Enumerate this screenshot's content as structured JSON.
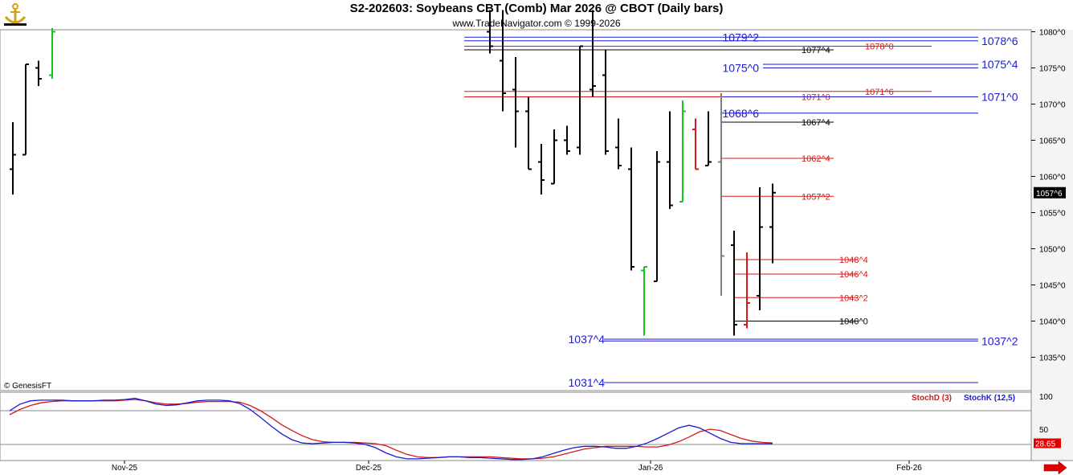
{
  "header": {
    "title": "S2-202603:  Soybeans CBT (Comb) Mar 2026 @ CBOT  (Daily bars)",
    "subtitle": "www.TradeNavigator.com © 1999-2026",
    "logo_icon": "anchor-icon"
  },
  "copyright": "© GenesisFT",
  "price_axis": {
    "ticks": [
      "1080^0",
      "1075^0",
      "1070^0",
      "1065^0",
      "1060^0",
      "1055^0",
      "1050^0",
      "1045^0",
      "1040^0",
      "1035^0"
    ],
    "last_price": "1057^6"
  },
  "date_axis": [
    "Nov-25",
    "Dec-25",
    "Jan-26",
    "Feb-26"
  ],
  "colors": {
    "blue": "#1a1ad6",
    "red": "#d41a1a",
    "black": "#000000",
    "green": "#19c419",
    "gray": "#808080"
  },
  "chart_data": [
    {
      "type": "bar",
      "subtype": "ohlc",
      "ylim": [
        1031,
        1082
      ],
      "bars": [
        {
          "o": 1061,
          "h": 1067.5,
          "l": 1057.5,
          "c": 1063,
          "color": "black"
        },
        {
          "o": 1063,
          "h": 1075.5,
          "l": 1063,
          "c": 1075.5,
          "color": "black"
        },
        {
          "o": 1075,
          "h": 1076,
          "l": 1072.5,
          "c": 1073.5,
          "color": "black"
        },
        {
          "o": 1074,
          "h": 1080.5,
          "l": 1073.5,
          "c": 1080,
          "color": "green"
        },
        {
          "o": 1080,
          "h": 1083,
          "l": 1077,
          "c": 1078,
          "color": "black"
        },
        {
          "o": 1076,
          "h": 1083,
          "l": 1069,
          "c": 1071.5,
          "color": "black"
        },
        {
          "o": 1072,
          "h": 1076.5,
          "l": 1064,
          "c": 1069,
          "color": "black"
        },
        {
          "o": 1069,
          "h": 1071,
          "l": 1061,
          "c": 1061,
          "color": "black"
        },
        {
          "o": 1062,
          "h": 1064.5,
          "l": 1057.5,
          "c": 1059.5,
          "color": "black"
        },
        {
          "o": 1059,
          "h": 1066.5,
          "l": 1059,
          "c": 1065,
          "color": "black"
        },
        {
          "o": 1065,
          "h": 1067,
          "l": 1063,
          "c": 1063.5,
          "color": "black"
        },
        {
          "o": 1064,
          "h": 1078,
          "l": 1063,
          "c": 1078,
          "color": "black"
        },
        {
          "o": 1072,
          "h": 1083,
          "l": 1071,
          "c": 1072.5,
          "color": "black"
        },
        {
          "o": 1074,
          "h": 1077.5,
          "l": 1063,
          "c": 1063.5,
          "color": "black"
        },
        {
          "o": 1064,
          "h": 1068,
          "l": 1061,
          "c": 1061.5,
          "color": "black"
        },
        {
          "o": 1061,
          "h": 1064,
          "l": 1047,
          "c": 1047.5,
          "color": "black"
        },
        {
          "o": 1047,
          "h": 1047.5,
          "l": 1038,
          "c": 1047.5,
          "color": "green"
        },
        {
          "o": 1045.5,
          "h": 1063.5,
          "l": 1045.5,
          "c": 1062,
          "color": "black"
        },
        {
          "o": 1062,
          "h": 1069,
          "l": 1055.5,
          "c": 1056,
          "color": "black"
        },
        {
          "o": 1056.5,
          "h": 1070.5,
          "l": 1056.5,
          "c": 1069,
          "color": "green"
        },
        {
          "o": 1066.5,
          "h": 1068,
          "l": 1061,
          "c": 1061,
          "color": "red"
        },
        {
          "o": 1061.5,
          "h": 1069,
          "l": 1061.5,
          "c": 1062,
          "color": "black"
        },
        {
          "o": 1062,
          "h": 1071.5,
          "l": 1043.5,
          "c": 1049,
          "color": "gray"
        },
        {
          "o": 1050.5,
          "h": 1052.5,
          "l": 1038,
          "c": 1039.5,
          "color": "black"
        },
        {
          "o": 1039.5,
          "h": 1049.5,
          "l": 1039,
          "c": 1042.5,
          "color": "red"
        },
        {
          "o": 1043.5,
          "h": 1058.5,
          "l": 1041.5,
          "c": 1053,
          "color": "black"
        },
        {
          "o": 1053,
          "h": 1059,
          "l": 1048,
          "c": 1057.75,
          "color": "black"
        }
      ],
      "levels": [
        {
          "label": "1079^2",
          "price": 1079.25,
          "color": "blue",
          "side": "left"
        },
        {
          "label": "1078^6",
          "price": 1078.75,
          "color": "blue",
          "side": "right"
        },
        {
          "label": "1077^4",
          "price": 1077.5,
          "color": "black",
          "side": "mid"
        },
        {
          "label": "1078^0",
          "price": 1078,
          "color": "red",
          "side": "mid2"
        },
        {
          "label": "1075^0",
          "price": 1075,
          "color": "blue",
          "side": "left"
        },
        {
          "label": "1075^4",
          "price": 1075.5,
          "color": "blue",
          "side": "right"
        },
        {
          "label": "1071^0",
          "price": 1071,
          "color": "red",
          "side": "mid"
        },
        {
          "label": "1071^6",
          "price": 1071.75,
          "color": "red",
          "side": "mid2"
        },
        {
          "label": "1071^0",
          "price": 1071,
          "color": "blue",
          "side": "right"
        },
        {
          "label": "1068^6",
          "price": 1068.75,
          "color": "blue",
          "side": "left"
        },
        {
          "label": "1067^4",
          "price": 1067.5,
          "color": "black",
          "side": "mid"
        },
        {
          "label": "1062^4",
          "price": 1062.5,
          "color": "red",
          "side": "mid"
        },
        {
          "label": "1057^2",
          "price": 1057.25,
          "color": "red",
          "side": "mid"
        },
        {
          "label": "1048^4",
          "price": 1048.5,
          "color": "red",
          "side": "low"
        },
        {
          "label": "1046^4",
          "price": 1046.5,
          "color": "red",
          "side": "low"
        },
        {
          "label": "1043^2",
          "price": 1043.25,
          "color": "red",
          "side": "low"
        },
        {
          "label": "1040^0",
          "price": 1040,
          "color": "black",
          "side": "low"
        },
        {
          "label": "1037^4",
          "price": 1037.5,
          "color": "blue",
          "side": "left"
        },
        {
          "label": "1037^2",
          "price": 1037.25,
          "color": "blue",
          "side": "right"
        },
        {
          "label": "1031^4",
          "price": 1031.5,
          "color": "blue",
          "side": "left"
        }
      ]
    },
    {
      "type": "line",
      "ylim": [
        0,
        100
      ],
      "ticks": [
        "100",
        "50"
      ],
      "last_value": "28.65",
      "series": [
        {
          "name": "StochD (3)",
          "color": "red",
          "values": [
            72,
            80,
            86,
            90,
            92,
            93,
            93,
            93,
            93,
            93,
            93,
            94,
            95,
            93,
            90,
            88,
            88,
            89,
            91,
            92,
            92,
            92,
            91,
            86,
            78,
            68,
            57,
            48,
            40,
            34,
            31,
            30,
            30,
            30,
            29,
            28,
            25,
            18,
            12,
            8,
            7,
            7,
            8,
            8,
            8,
            8,
            8,
            7,
            6,
            5,
            5,
            6,
            8,
            12,
            16,
            20,
            22,
            24,
            24,
            24,
            24,
            23,
            23,
            26,
            31,
            38,
            46,
            50,
            48,
            42,
            36,
            32,
            30,
            29
          ]
        },
        {
          "name": "StochK (12,5)",
          "color": "blue",
          "values": [
            78,
            88,
            93,
            94,
            94,
            94,
            93,
            93,
            93,
            94,
            94,
            95,
            97,
            93,
            88,
            86,
            87,
            90,
            93,
            94,
            94,
            93,
            89,
            80,
            68,
            55,
            43,
            34,
            29,
            28,
            29,
            30,
            30,
            29,
            27,
            22,
            14,
            8,
            5,
            5,
            6,
            7,
            8,
            8,
            7,
            7,
            6,
            5,
            4,
            4,
            5,
            8,
            13,
            18,
            22,
            24,
            24,
            23,
            21,
            21,
            24,
            29,
            36,
            44,
            52,
            56,
            52,
            44,
            36,
            30,
            28,
            28,
            28,
            28
          ]
        }
      ]
    }
  ]
}
